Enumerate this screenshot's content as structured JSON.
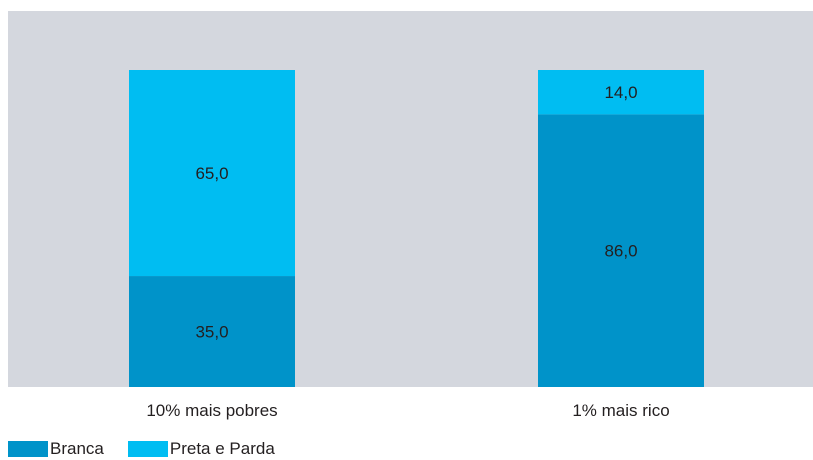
{
  "chart_data": {
    "type": "bar",
    "stacked": true,
    "categories": [
      "10% mais pobres",
      "1% mais rico"
    ],
    "series": [
      {
        "name": "Branca",
        "values": [
          35.0,
          86.0
        ],
        "labels": [
          "35,0",
          "86,0"
        ],
        "color": "#0093c9"
      },
      {
        "name": "Preta e Parda",
        "values": [
          65.0,
          14.0
        ],
        "labels": [
          "65,0",
          "14,0"
        ],
        "color": "#00bdf2"
      }
    ],
    "ylim": [
      0,
      100
    ],
    "grid": false,
    "legend_position": "bottom-left",
    "plot_background": "#d4d7de",
    "label_color": "#231f20"
  }
}
